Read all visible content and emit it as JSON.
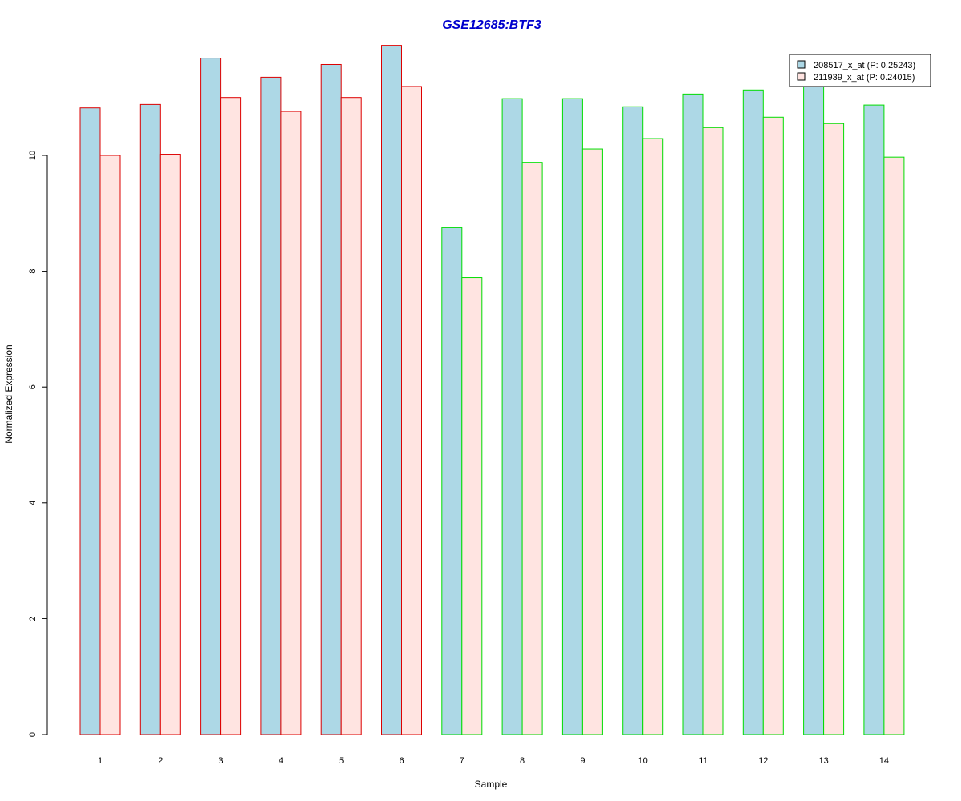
{
  "chart_data": {
    "type": "bar",
    "title": "GSE12685:BTF3",
    "xlabel": "Sample",
    "ylabel": "Normalized Expression",
    "categories": [
      "1",
      "2",
      "3",
      "4",
      "5",
      "6",
      "7",
      "8",
      "9",
      "10",
      "11",
      "12",
      "13",
      "14"
    ],
    "ylim": [
      0,
      12
    ],
    "yticks": [
      0,
      2,
      4,
      6,
      8,
      10
    ],
    "grid": false,
    "legend_position": "top-right",
    "series": [
      {
        "name": "208517_x_at (P: 0.25243)",
        "fill": "#add8e6",
        "values": [
          10.82,
          10.88,
          11.68,
          11.35,
          11.57,
          11.9,
          8.75,
          10.98,
          10.98,
          10.84,
          11.06,
          11.13,
          11.2,
          10.87
        ]
      },
      {
        "name": "211939_x_at (P: 0.24015)",
        "fill": "#ffe4e1",
        "values": [
          10.0,
          10.02,
          11.0,
          10.76,
          11.0,
          11.19,
          7.89,
          9.88,
          10.11,
          10.29,
          10.48,
          10.66,
          10.55,
          9.97
        ]
      }
    ],
    "group_border_colors": [
      "#dd0000",
      "#dd0000",
      "#dd0000",
      "#dd0000",
      "#dd0000",
      "#dd0000",
      "#00dd00",
      "#00dd00",
      "#00dd00",
      "#00dd00",
      "#00dd00",
      "#00dd00",
      "#00dd00",
      "#00dd00"
    ]
  }
}
